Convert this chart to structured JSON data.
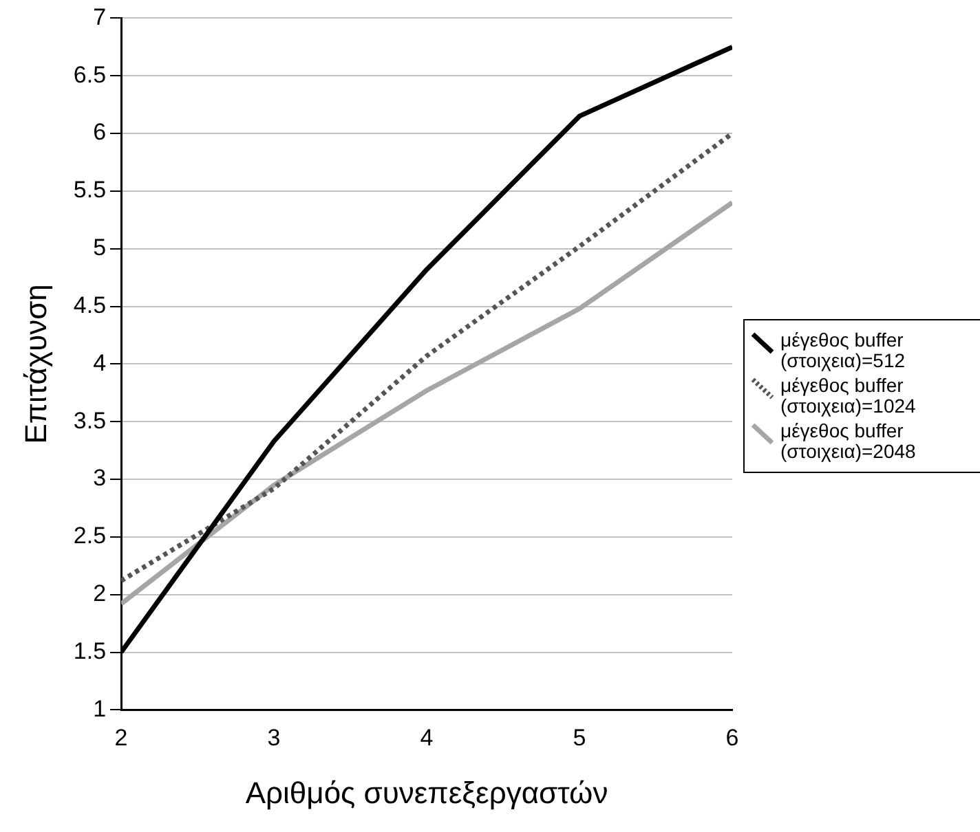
{
  "chart_data": {
    "type": "line",
    "xlabel": "Αριθμός συνεπεξεργαστών",
    "ylabel": "Επιτάχυνση",
    "x": [
      2,
      3,
      4,
      5,
      6
    ],
    "series": [
      {
        "name": "μέγεθος buffer (στοιχεια)=512",
        "color": "#000000",
        "line_style": "solid",
        "values": [
          1.5,
          3.33,
          4.82,
          6.15,
          6.75
        ]
      },
      {
        "name": "μέγεθος buffer (στοιχεια)=1024",
        "color": "#555555",
        "line_style": "dotted",
        "values": [
          2.12,
          2.92,
          4.07,
          5.02,
          6.0
        ]
      },
      {
        "name": "μέγεθος buffer (στοιχεια)=2048",
        "color": "#a6a6a6",
        "line_style": "solid",
        "values": [
          1.92,
          2.95,
          3.77,
          4.48,
          5.4
        ]
      }
    ],
    "xlim": [
      2,
      6
    ],
    "xticks": [
      2,
      3,
      4,
      5,
      6
    ],
    "ylim": [
      1,
      7
    ],
    "yticks": [
      1,
      1.5,
      2,
      2.5,
      3,
      3.5,
      4,
      4.5,
      5,
      5.5,
      6,
      6.5,
      7
    ],
    "grid": "y",
    "legend": "right",
    "marker": "none"
  }
}
